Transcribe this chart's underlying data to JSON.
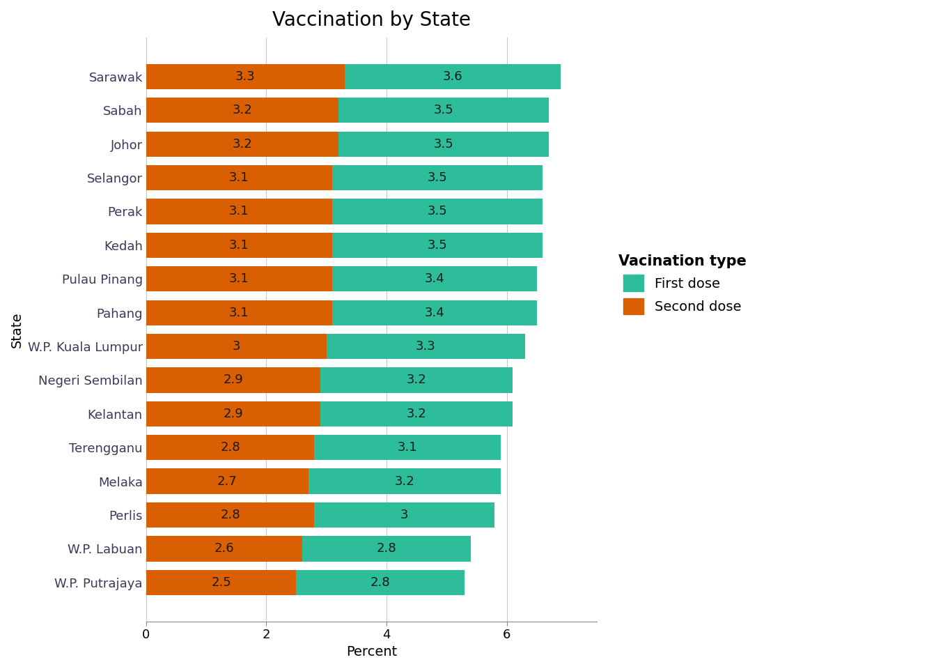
{
  "title": "Vaccination by State",
  "xlabel": "Percent",
  "ylabel": "State",
  "states": [
    "W.P. Putrajaya",
    "W.P. Labuan",
    "Perlis",
    "Melaka",
    "Terengganu",
    "Kelantan",
    "Negeri Sembilan",
    "W.P. Kuala Lumpur",
    "Pahang",
    "Pulau Pinang",
    "Kedah",
    "Perak",
    "Selangor",
    "Johor",
    "Sabah",
    "Sarawak"
  ],
  "second_dose": [
    2.5,
    2.6,
    2.8,
    2.7,
    2.8,
    2.9,
    2.9,
    3.0,
    3.1,
    3.1,
    3.1,
    3.1,
    3.1,
    3.2,
    3.2,
    3.3
  ],
  "first_dose": [
    2.8,
    2.8,
    3.0,
    3.2,
    3.1,
    3.2,
    3.2,
    3.3,
    3.4,
    3.4,
    3.5,
    3.5,
    3.5,
    3.5,
    3.5,
    3.6
  ],
  "color_first_dose": "#2ebd9b",
  "color_second_dose": "#d95f02",
  "legend_title": "Vacination type",
  "legend_labels": [
    "First dose",
    "Second dose"
  ],
  "bar_height": 0.75,
  "xlim": [
    0,
    7.5
  ],
  "xticks": [
    0,
    2,
    4,
    6
  ],
  "background_color": "#ffffff",
  "grid_color": "#c8c8c8",
  "label_text_color": "#1a1a1a",
  "ytick_color": "#3a3a5c",
  "title_fontsize": 20,
  "axis_label_fontsize": 14,
  "tick_label_fontsize": 13,
  "bar_label_fontsize": 13,
  "legend_fontsize": 14,
  "legend_title_fontsize": 15
}
